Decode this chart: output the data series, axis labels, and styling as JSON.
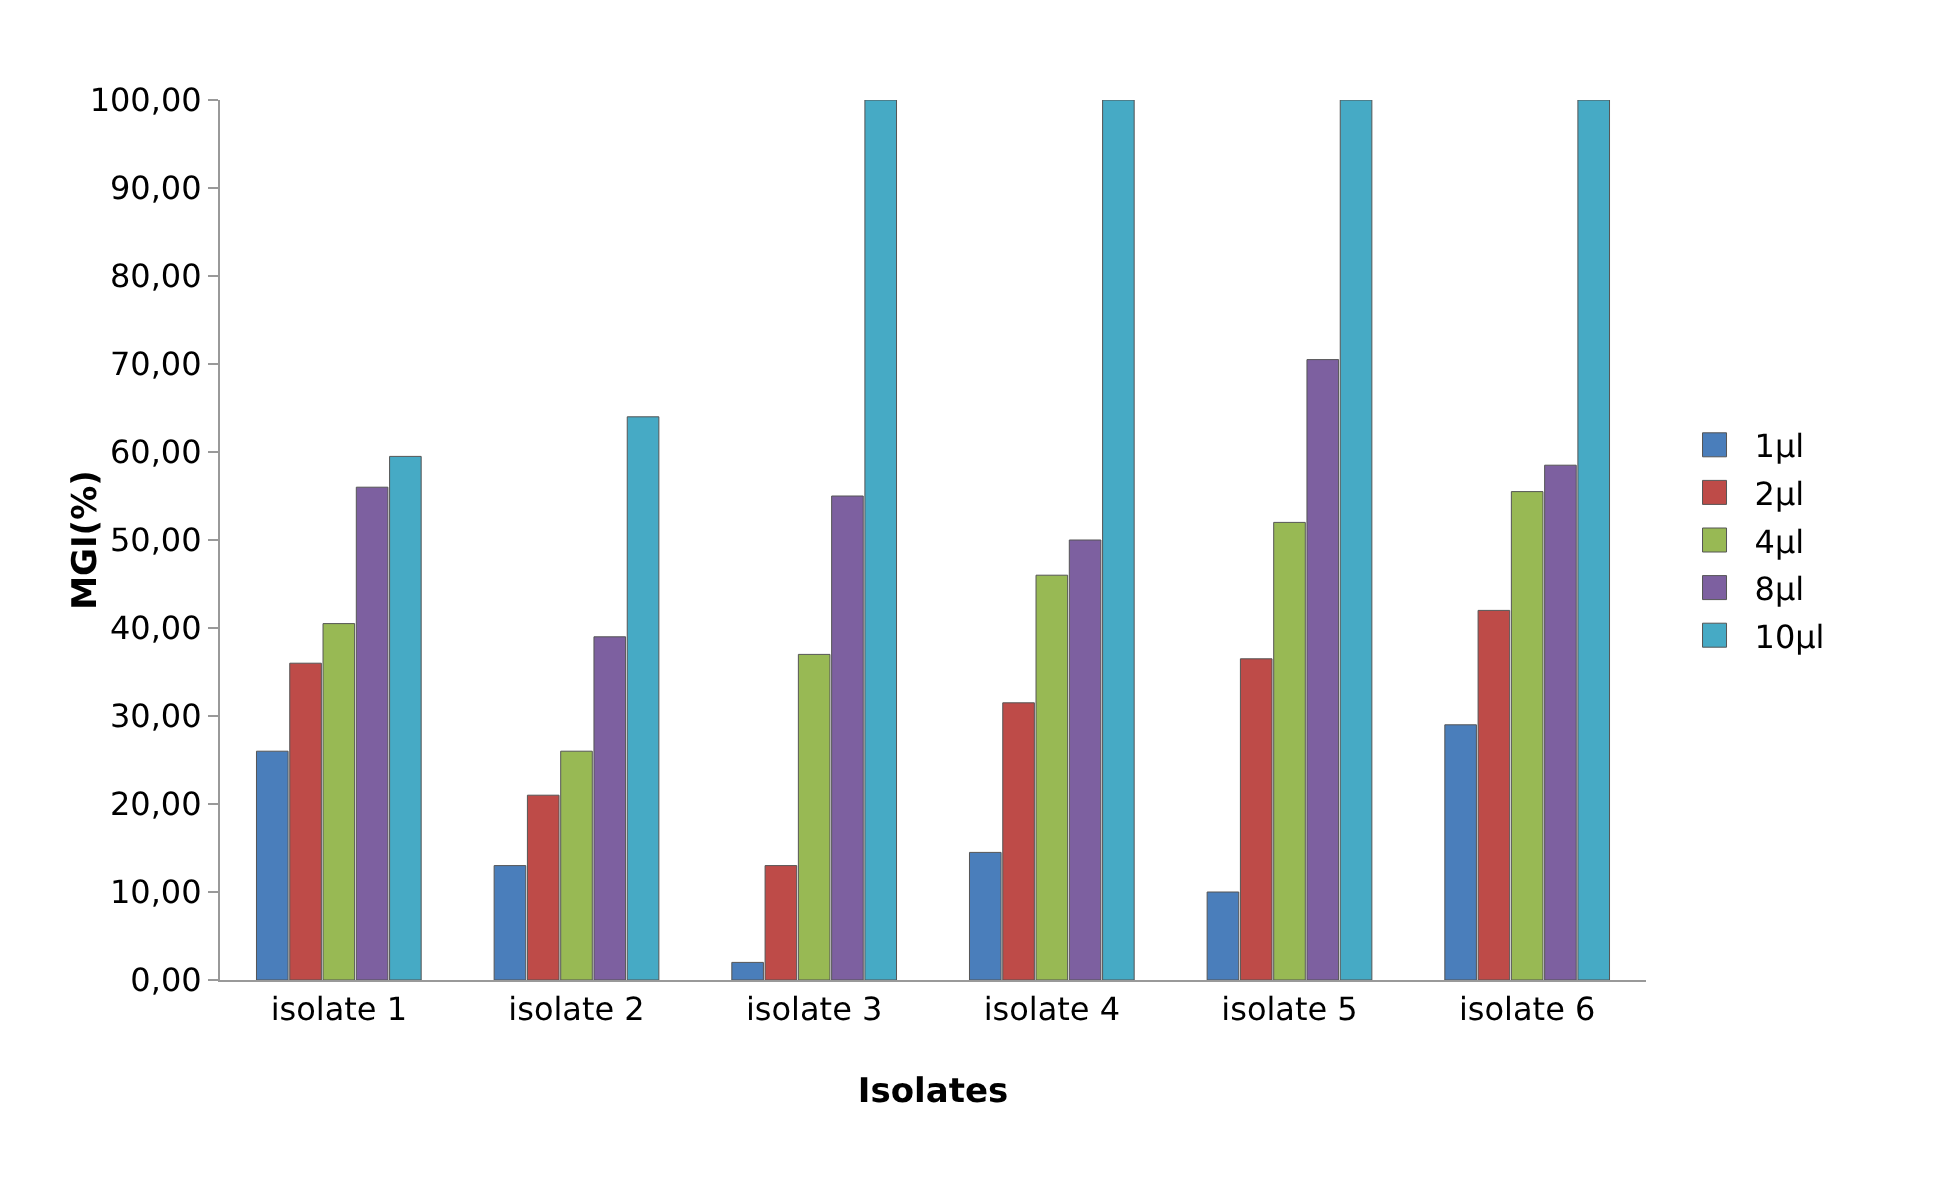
{
  "chart_data": {
    "type": "bar",
    "xlabel": "Isolates",
    "ylabel": "MGI(%)",
    "categories": [
      "isolate 1",
      "isolate 2",
      "isolate 3",
      "isolate 4",
      "isolate 5",
      "isolate 6"
    ],
    "series": [
      {
        "name": "1µl",
        "color": "#4a7ebb",
        "values": [
          26,
          13,
          2,
          14.5,
          10,
          29
        ]
      },
      {
        "name": "2µl",
        "color": "#be4b48",
        "values": [
          36,
          21,
          13,
          31.5,
          36.5,
          42
        ]
      },
      {
        "name": "4µl",
        "color": "#98b954",
        "values": [
          40.5,
          26,
          37,
          46,
          52,
          55.5
        ]
      },
      {
        "name": "8µl",
        "color": "#7d60a0",
        "values": [
          56,
          39,
          55,
          50,
          70.5,
          58.5
        ]
      },
      {
        "name": "10µl",
        "color": "#46aac5",
        "values": [
          59.5,
          64,
          100,
          100,
          100,
          100
        ]
      }
    ],
    "ylim": [
      0,
      100
    ],
    "yticks": [
      {
        "value": 0,
        "label": "0,00"
      },
      {
        "value": 10,
        "label": "10,00"
      },
      {
        "value": 20,
        "label": "20,00"
      },
      {
        "value": 30,
        "label": "30,00"
      },
      {
        "value": 40,
        "label": "40,00"
      },
      {
        "value": 50,
        "label": "50,00"
      },
      {
        "value": 60,
        "label": "60,00"
      },
      {
        "value": 70,
        "label": "70,00"
      },
      {
        "value": 80,
        "label": "80,00"
      },
      {
        "value": 90,
        "label": "90,00"
      },
      {
        "value": 100,
        "label": "100,00"
      }
    ],
    "grid": false,
    "legend": "right"
  }
}
